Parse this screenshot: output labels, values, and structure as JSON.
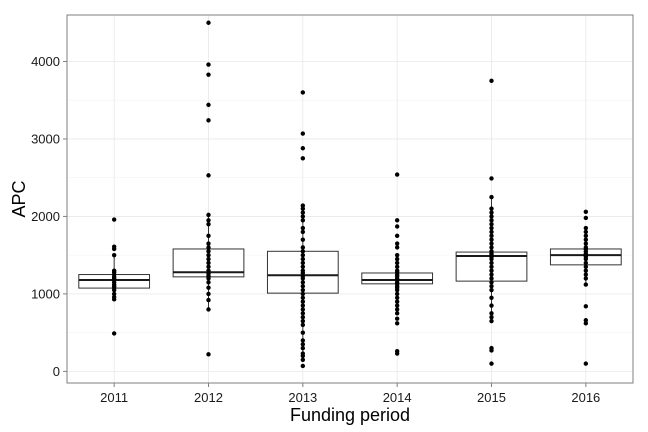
{
  "chart_data": {
    "type": "boxplot",
    "xlabel": "Funding period",
    "ylabel": "APC",
    "ylim": [
      -150,
      4600
    ],
    "yticks": [
      0,
      1000,
      2000,
      3000,
      4000
    ],
    "grid": true,
    "legend": "none",
    "categories": [
      "2011",
      "2012",
      "2013",
      "2014",
      "2015",
      "2016"
    ],
    "boxes": [
      {
        "category": "2011",
        "q1": 1075,
        "median": 1180,
        "q3": 1250,
        "whisker_low": 930,
        "whisker_high": 1500
      },
      {
        "category": "2012",
        "q1": 1220,
        "median": 1280,
        "q3": 1580,
        "whisker_low": 800,
        "whisker_high": 2000
      },
      {
        "category": "2013",
        "q1": 1010,
        "median": 1240,
        "q3": 1550,
        "whisker_low": 230,
        "whisker_high": 2140
      },
      {
        "category": "2014",
        "q1": 1130,
        "median": 1180,
        "q3": 1270,
        "whisker_low": 1000,
        "whisker_high": 1400
      },
      {
        "category": "2015",
        "q1": 1165,
        "median": 1490,
        "q3": 1540,
        "whisker_low": 650,
        "whisker_high": 2250
      },
      {
        "category": "2016",
        "q1": 1375,
        "median": 1500,
        "q3": 1580,
        "whisker_low": 1120,
        "whisker_high": 1850
      }
    ],
    "points": [
      {
        "category": "2011",
        "values": [
          490,
          930,
          960,
          1000,
          1050,
          1080,
          1100,
          1120,
          1150,
          1180,
          1200,
          1220,
          1250,
          1280,
          1300,
          1500,
          1580,
          1610,
          1960
        ]
      },
      {
        "category": "2012",
        "values": [
          220,
          800,
          920,
          1000,
          1080,
          1150,
          1200,
          1230,
          1260,
          1300,
          1350,
          1400,
          1450,
          1500,
          1550,
          1600,
          1650,
          1750,
          1900,
          1950,
          2020,
          2530,
          3240,
          3440,
          3830,
          3960,
          4500
        ]
      },
      {
        "category": "2013",
        "values": [
          70,
          150,
          200,
          230,
          300,
          350,
          400,
          500,
          600,
          650,
          700,
          750,
          800,
          850,
          900,
          950,
          1000,
          1050,
          1100,
          1150,
          1200,
          1230,
          1270,
          1300,
          1350,
          1400,
          1450,
          1500,
          1550,
          1600,
          1700,
          1800,
          1850,
          1950,
          2000,
          2050,
          2100,
          2140,
          2750,
          2880,
          3070,
          3600
        ]
      },
      {
        "category": "2014",
        "values": [
          230,
          260,
          620,
          680,
          750,
          800,
          850,
          900,
          950,
          1000,
          1050,
          1080,
          1100,
          1130,
          1150,
          1180,
          1200,
          1230,
          1250,
          1280,
          1300,
          1350,
          1400,
          1450,
          1500,
          1600,
          1650,
          1750,
          1870,
          1950,
          2540
        ]
      },
      {
        "category": "2015",
        "values": [
          100,
          270,
          300,
          650,
          700,
          750,
          850,
          950,
          1050,
          1100,
          1150,
          1200,
          1250,
          1300,
          1350,
          1400,
          1450,
          1480,
          1500,
          1520,
          1550,
          1600,
          1650,
          1700,
          1750,
          1800,
          1850,
          1900,
          1950,
          2000,
          2050,
          2100,
          2250,
          2490,
          3750
        ]
      },
      {
        "category": "2016",
        "values": [
          100,
          620,
          660,
          840,
          1120,
          1200,
          1250,
          1300,
          1350,
          1400,
          1450,
          1480,
          1500,
          1520,
          1550,
          1580,
          1600,
          1650,
          1700,
          1750,
          1800,
          1850,
          1980,
          2060
        ]
      }
    ]
  }
}
